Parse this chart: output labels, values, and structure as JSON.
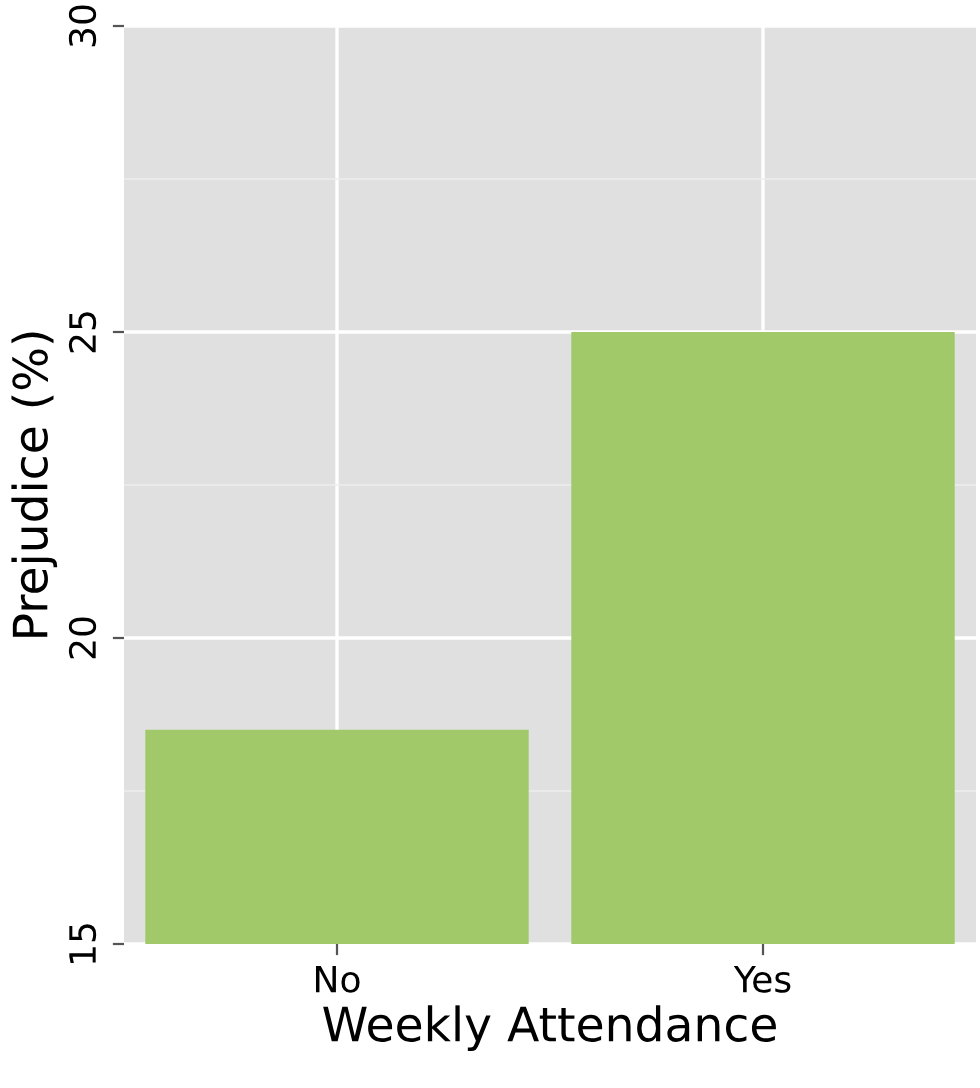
{
  "chart_data": {
    "type": "bar",
    "xlabel": "Weekly Attendance",
    "ylabel": "Prejudice (%)",
    "categories": [
      "No",
      "Yes"
    ],
    "values": [
      18.5,
      25
    ],
    "color": "#a1c96a",
    "ylim": [
      15,
      30
    ],
    "yticks": [
      15,
      20,
      25,
      30
    ],
    "grid": true
  }
}
